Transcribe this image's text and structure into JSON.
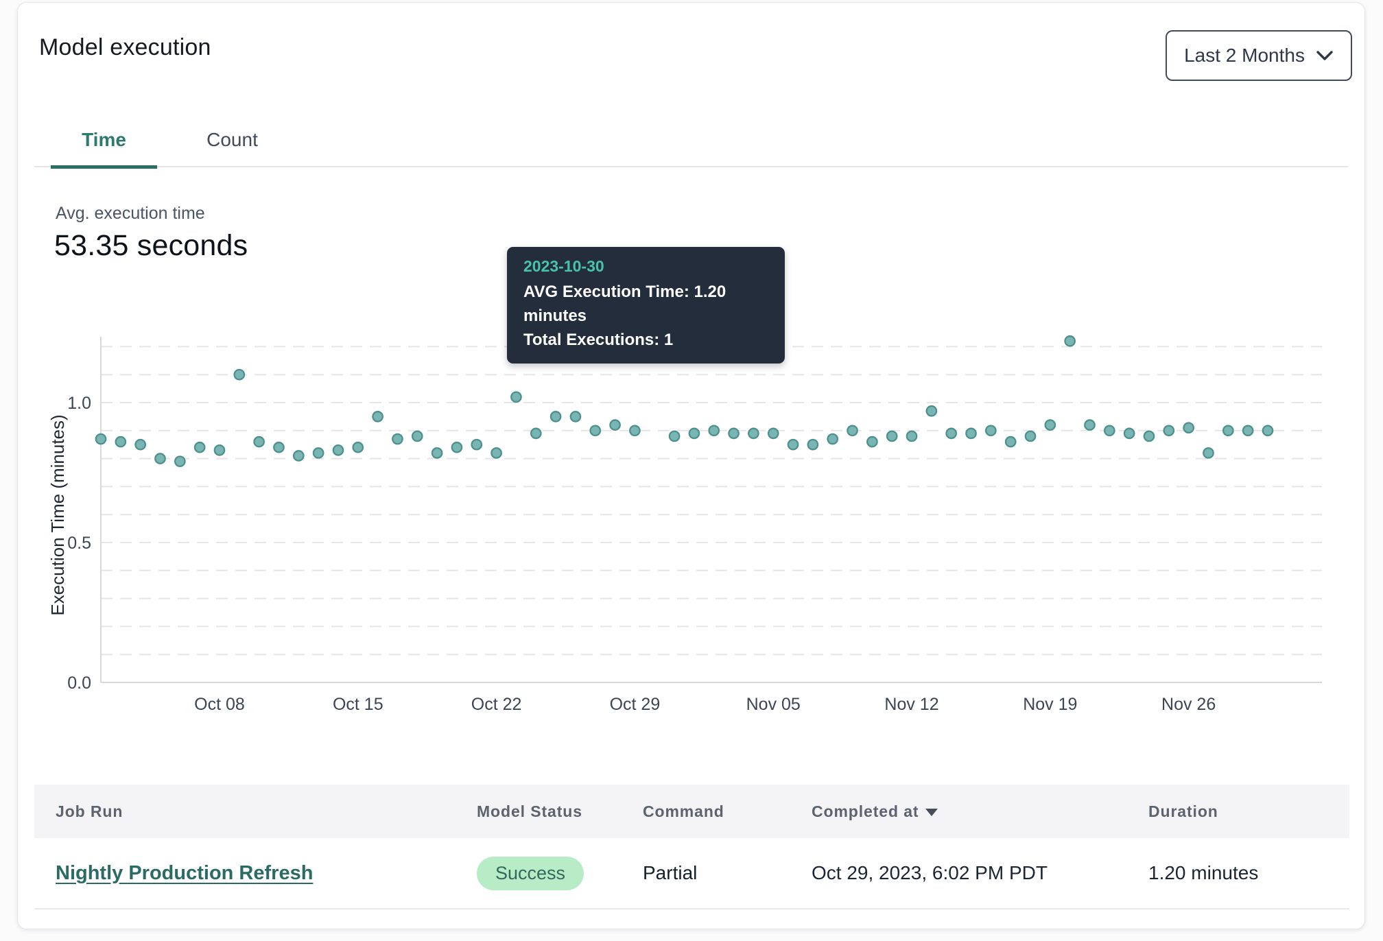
{
  "card": {
    "title": "Model execution"
  },
  "filter": {
    "selected": "Last 2 Months"
  },
  "tabs": [
    {
      "label": "Time",
      "active": true
    },
    {
      "label": "Count",
      "active": false
    }
  ],
  "summary": {
    "label": "Avg. execution time",
    "value": "53.35 seconds"
  },
  "tooltip": {
    "date": "2023-10-30",
    "line1": "AVG Execution Time: 1.20 minutes",
    "line2": "Total Executions: 1"
  },
  "chart_data": {
    "type": "scatter",
    "title": "",
    "xlabel": "",
    "ylabel": "Execution Time (minutes)",
    "ylim": [
      0,
      1.25
    ],
    "yticks": [
      0.0,
      0.5,
      1.0
    ],
    "gridline_step": 0.1,
    "grid": "dashed-horizontal",
    "legend": "none",
    "x_tick_labels": [
      "Oct 08",
      "Oct 15",
      "Oct 22",
      "Oct 29",
      "Nov 05",
      "Nov 12",
      "Nov 19",
      "Nov 26"
    ],
    "x_tick_indices": [
      6,
      13,
      20,
      27,
      34,
      41,
      48,
      55
    ],
    "dates": [
      "2023-10-02",
      "2023-10-03",
      "2023-10-04",
      "2023-10-05",
      "2023-10-06",
      "2023-10-07",
      "2023-10-08",
      "2023-10-09",
      "2023-10-10",
      "2023-10-11",
      "2023-10-12",
      "2023-10-13",
      "2023-10-14",
      "2023-10-15",
      "2023-10-16",
      "2023-10-17",
      "2023-10-18",
      "2023-10-19",
      "2023-10-20",
      "2023-10-21",
      "2023-10-22",
      "2023-10-23",
      "2023-10-24",
      "2023-10-25",
      "2023-10-26",
      "2023-10-27",
      "2023-10-28",
      "2023-10-29",
      "2023-10-30",
      "2023-10-31",
      "2023-11-01",
      "2023-11-02",
      "2023-11-03",
      "2023-11-04",
      "2023-11-05",
      "2023-11-06",
      "2023-11-07",
      "2023-11-08",
      "2023-11-09",
      "2023-11-10",
      "2023-11-11",
      "2023-11-12",
      "2023-11-13",
      "2023-11-14",
      "2023-11-15",
      "2023-11-16",
      "2023-11-17",
      "2023-11-18",
      "2023-11-19",
      "2023-11-20",
      "2023-11-21",
      "2023-11-22",
      "2023-11-23",
      "2023-11-24",
      "2023-11-25",
      "2023-11-26",
      "2023-11-27",
      "2023-11-28",
      "2023-11-29",
      "2023-11-30"
    ],
    "values": [
      0.87,
      0.86,
      0.85,
      0.8,
      0.79,
      0.84,
      0.83,
      1.1,
      0.86,
      0.84,
      0.81,
      0.82,
      0.83,
      0.84,
      0.95,
      0.87,
      0.88,
      0.82,
      0.84,
      0.85,
      0.82,
      1.02,
      0.89,
      0.95,
      0.95,
      0.9,
      0.92,
      0.9,
      1.2,
      0.88,
      0.89,
      0.9,
      0.89,
      0.89,
      0.89,
      0.85,
      0.85,
      0.87,
      0.9,
      0.86,
      0.88,
      0.88,
      0.97,
      0.89,
      0.89,
      0.9,
      0.86,
      0.88,
      0.92,
      1.22,
      0.92,
      0.9,
      0.89,
      0.88,
      0.9,
      0.91,
      0.82,
      0.9,
      0.9,
      0.9
    ],
    "highlight": {
      "index": 28,
      "date": "2023-10-30",
      "value": 1.2,
      "total_executions": 1
    },
    "point_color": "#79b6b3",
    "point_stroke": "#4e908d",
    "highlight_color": "#4d8a87",
    "grid_color": "#e5e5e9",
    "axis_color": "#d7d7dc",
    "tick_color": "#3d4554"
  },
  "table": {
    "columns": [
      {
        "label": "Job Run",
        "sortable": false
      },
      {
        "label": "Model Status",
        "sortable": false
      },
      {
        "label": "Command",
        "sortable": false
      },
      {
        "label": "Completed at",
        "sortable": true,
        "sort": "desc"
      },
      {
        "label": "Duration",
        "sortable": false
      }
    ],
    "rows": [
      {
        "job_run": "Nightly Production Refresh",
        "model_status": "Success",
        "command": "Partial",
        "completed_at": "Oct 29, 2023, 6:02 PM PDT",
        "duration": "1.20 minutes"
      }
    ]
  },
  "colors": {
    "accent_teal": "#2d7a72",
    "tab_underline": "#2b6e67",
    "tooltip_bg": "#242d3c",
    "tooltip_date": "#48c3ab",
    "badge_bg": "#b8ecc6",
    "badge_text": "#33685d",
    "link": "#2a6b64",
    "header_bg": "#f4f4f6"
  }
}
